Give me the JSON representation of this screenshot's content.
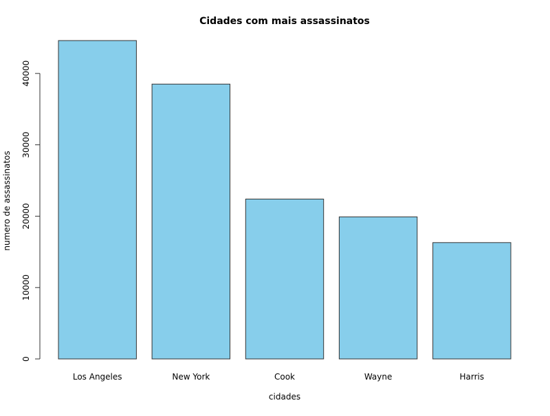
{
  "chart_data": {
    "type": "bar",
    "title": "Cidades com mais assassinatos",
    "xlabel": "cidades",
    "ylabel": "numero de assassinatos",
    "categories": [
      "Los Angeles",
      "New York",
      "Cook",
      "Wayne",
      "Harris"
    ],
    "values": [
      44600,
      38500,
      22400,
      19900,
      16300
    ],
    "yticks": [
      0,
      10000,
      20000,
      30000,
      40000
    ],
    "ylim": [
      0,
      44600
    ],
    "grid": false,
    "bar_fill": "#87CEEB",
    "bar_stroke": "#333333"
  }
}
